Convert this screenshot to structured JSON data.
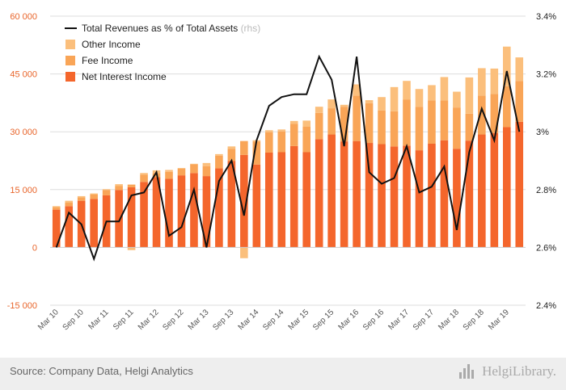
{
  "footer": {
    "source": "Source: Company Data, Helgi Analytics",
    "logo_text": "HelgiLibrary."
  },
  "colors": {
    "net_interest": "#f4662c",
    "fee": "#f9a557",
    "other": "#fbbf7c",
    "line": "#111111",
    "left_axis": "#e8652b"
  },
  "chart_data": {
    "type": "bar",
    "stacked": true,
    "x": [
      "Mar 10",
      "Jun 10",
      "Sep 10",
      "Dec 10",
      "Mar 11",
      "Jun 11",
      "Sep 11",
      "Dec 11",
      "Mar 12",
      "Jun 12",
      "Sep 12",
      "Dec 12",
      "Mar 13",
      "Jun 13",
      "Sep 13",
      "Dec 13",
      "Mar 14",
      "Jun 14",
      "Sep 14",
      "Dec 14",
      "Mar 15",
      "Jun 15",
      "Sep 15",
      "Dec 15",
      "Mar 16",
      "Jun 16",
      "Sep 16",
      "Dec 16",
      "Mar 17",
      "Jun 17",
      "Sep 17",
      "Dec 17",
      "Mar 18",
      "Jun 18",
      "Sep 18",
      "Dec 18",
      "Mar 19",
      "Jun 19"
    ],
    "x_tick_labels": [
      "Mar 10",
      "Sep 10",
      "Mar 11",
      "Sep 11",
      "Mar 12",
      "Sep 12",
      "Mar 13",
      "Sep 13",
      "Mar 14",
      "Sep 14",
      "Mar 15",
      "Sep 15",
      "Mar 16",
      "Sep 16",
      "Mar 17",
      "Sep 17",
      "Mar 18",
      "Sep 18",
      "Mar 19"
    ],
    "left_axis": {
      "ylim": [
        -15000,
        60000
      ],
      "ticks": [
        -15000,
        0,
        15000,
        30000,
        45000,
        60000
      ],
      "tick_labels": [
        "-15 000",
        "0",
        "15 000",
        "30 000",
        "45 000",
        "60 000"
      ]
    },
    "right_axis": {
      "ylim": [
        2.4,
        3.4
      ],
      "ticks": [
        2.4,
        2.6,
        2.8,
        3.0,
        3.2,
        3.4
      ],
      "tick_labels": [
        "2.4%",
        "2.6%",
        "2.8%",
        "3%",
        "3.2%",
        "3.4%"
      ]
    },
    "grid": true,
    "legend_position": "top-left",
    "series": [
      {
        "name": "Net Interest Income",
        "kind": "bar",
        "axis": "left",
        "values": [
          9800,
          10700,
          12100,
          12600,
          13500,
          14900,
          15600,
          17000,
          18200,
          17800,
          18700,
          19300,
          18500,
          20500,
          22400,
          24000,
          21500,
          24600,
          24700,
          26300,
          24700,
          28100,
          29300,
          27500,
          27600,
          27100,
          26800,
          26200,
          26400,
          25200,
          26900,
          27800,
          25600,
          27700,
          29300,
          29700,
          31200,
          32600
        ]
      },
      {
        "name": "Fee Income",
        "kind": "bar",
        "axis": "left",
        "values": [
          700,
          900,
          900,
          1100,
          1400,
          1000,
          700,
          1900,
          1100,
          1800,
          1700,
          2300,
          2600,
          3300,
          3200,
          3600,
          6000,
          5300,
          5400,
          5800,
          6600,
          6800,
          6800,
          9000,
          11800,
          10300,
          8700,
          9100,
          12000,
          11300,
          11200,
          10300,
          10700,
          7000,
          10100,
          10100,
          10600,
          10600
        ]
      },
      {
        "name": "Other Income",
        "kind": "bar",
        "axis": "left",
        "values": [
          200,
          500,
          300,
          300,
          200,
          500,
          -700,
          400,
          700,
          500,
          200,
          100,
          800,
          400,
          600,
          -2800,
          300,
          500,
          500,
          700,
          1600,
          1600,
          2300,
          500,
          2900,
          800,
          3500,
          6300,
          4800,
          4600,
          4000,
          6100,
          4100,
          9400,
          7100,
          6600,
          10300,
          6100
        ]
      },
      {
        "name": "Total Revenues as % of Total Assets",
        "name_suffix": "(rhs)",
        "kind": "line",
        "axis": "right",
        "values": [
          2.6,
          2.72,
          2.68,
          2.56,
          2.69,
          2.69,
          2.78,
          2.79,
          2.86,
          2.64,
          2.67,
          2.8,
          2.6,
          2.83,
          2.9,
          2.71,
          2.97,
          3.09,
          3.12,
          3.13,
          3.13,
          3.26,
          3.18,
          2.95,
          3.26,
          2.86,
          2.82,
          2.84,
          2.95,
          2.79,
          2.81,
          2.88,
          2.66,
          2.93,
          3.08,
          2.97,
          3.21,
          3.0
        ]
      }
    ]
  }
}
